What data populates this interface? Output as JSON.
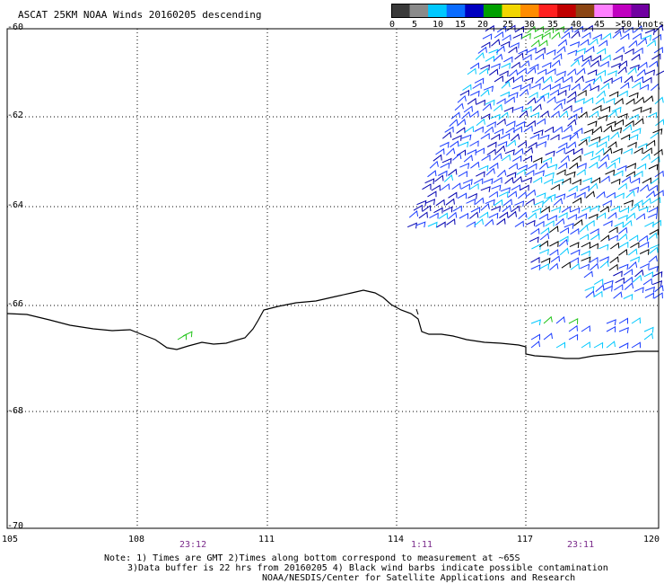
{
  "title": "ASCAT 25KM NOAA Winds 20160205 descending",
  "legend": {
    "unit": "knots",
    "labels": [
      "0",
      "5",
      "10",
      "15",
      "20",
      "25",
      "30",
      "35",
      "40",
      "45",
      ">50"
    ],
    "colors": [
      "#3a3a3a",
      "#8a8a8a",
      "#00c8ff",
      "#0a6cff",
      "#0000c0",
      "#00a000",
      "#f2d600",
      "#ff8c00",
      "#ff2020",
      "#c00000",
      "#8b4513",
      "#ff7fff",
      "#c000c0",
      "#7000a0"
    ]
  },
  "axes": {
    "lat_labels": [
      "-60",
      "-62",
      "-64",
      "-66",
      "-68",
      "-70"
    ],
    "lon_labels": [
      "105",
      "108",
      "111",
      "114",
      "117",
      "120"
    ]
  },
  "pass_times": [
    "23:12",
    "1:11",
    "23:11"
  ],
  "notes": [
    "Note: 1) Times are GMT 2)Times along bottom correspond to measurement at ~65S",
    "3)Data buffer is 22 hrs from 20160205 4) Black wind barbs indicate possible contamination",
    "NOAA/NESDIS/Center for Satellite Applications and Research"
  ],
  "colors": {
    "barb_light_blue": "#00c8ff",
    "barb_blue": "#1a3cff",
    "barb_dark_blue": "#0000b0",
    "barb_green": "#22c41a",
    "barb_black": "#000000",
    "coastline": "#000000",
    "time_label": "#7a2a8a"
  }
}
